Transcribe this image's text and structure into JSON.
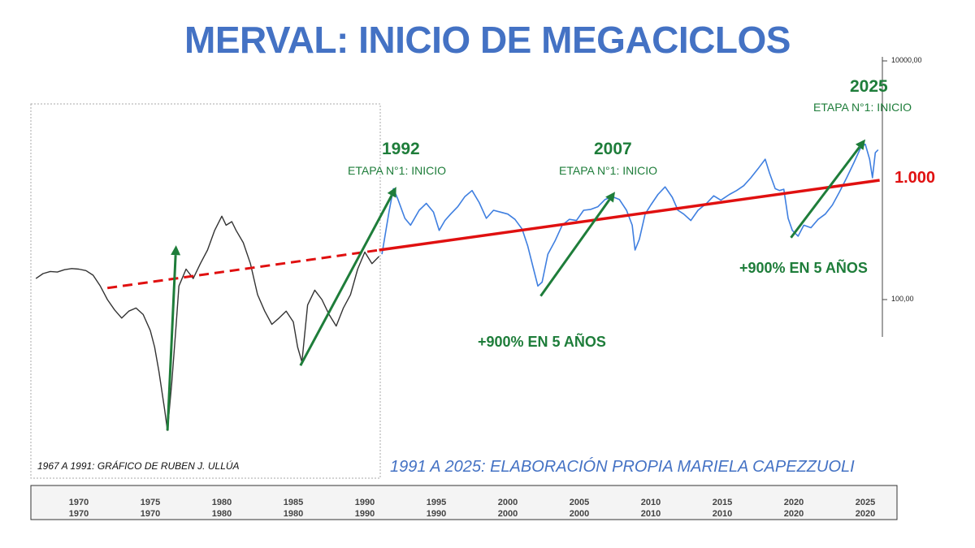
{
  "title": "MERVAL: INICIO DE MEGACICLOS",
  "colors": {
    "title": "#4472c4",
    "historical_series": "#333333",
    "recent_series": "#3f7fe0",
    "trend_line": "#e01010",
    "arrows": "#1e7d3a"
  },
  "annotations": {
    "a1992": {
      "year": "1992",
      "stage": "ETAPA N°1: INICIO"
    },
    "a2007": {
      "year": "2007",
      "stage": "ETAPA N°1: INICIO"
    },
    "a2025": {
      "year": "2025",
      "stage": "ETAPA N°1: INICIO"
    },
    "gain_2002": "+900% EN 5 AÑOS",
    "gain_2020": "+900% EN 5 AÑOS",
    "level": "1.000"
  },
  "credits": {
    "left": "1967 A 1991: GRÁFICO DE RUBEN J. ULLÚA",
    "right": "1991 A 2025: ELABORACIÓN PROPIA MARIELA CAPEZZUOLI"
  },
  "chart_data": {
    "type": "line",
    "title": "MERVAL: INICIO DE MEGACICLOS",
    "y_scale": "log",
    "y_ticks": [
      "10000,00",
      "100,00"
    ],
    "x_axis_top": [
      "1970",
      "1975",
      "1980",
      "1985",
      "1990",
      "1995",
      "2000",
      "2005",
      "2010",
      "2015",
      "2020",
      "2025"
    ],
    "x_axis_bottom": [
      "1970",
      "1970",
      "1980",
      "1980",
      "1990",
      "1990",
      "2000",
      "2000",
      "2010",
      "2010",
      "2020",
      "2020"
    ],
    "series": [
      {
        "style": "historical",
        "points": [
          [
            1967.0,
            150
          ],
          [
            1967.5,
            165
          ],
          [
            1968.0,
            172
          ],
          [
            1968.5,
            170
          ],
          [
            1969.0,
            178
          ],
          [
            1969.5,
            182
          ],
          [
            1970.0,
            180
          ],
          [
            1970.5,
            175
          ],
          [
            1971.0,
            160
          ],
          [
            1971.5,
            130
          ],
          [
            1972.0,
            100
          ],
          [
            1972.5,
            82
          ],
          [
            1973.0,
            70
          ],
          [
            1973.5,
            80
          ],
          [
            1974.0,
            85
          ],
          [
            1974.5,
            75
          ],
          [
            1975.0,
            55
          ],
          [
            1975.3,
            40
          ],
          [
            1975.6,
            25
          ],
          [
            1976.0,
            12
          ],
          [
            1976.2,
            8
          ],
          [
            1976.5,
            20
          ],
          [
            1976.8,
            60
          ],
          [
            1977.0,
            130
          ],
          [
            1977.5,
            180
          ],
          [
            1978.0,
            150
          ],
          [
            1978.5,
            200
          ],
          [
            1979.0,
            260
          ],
          [
            1979.5,
            380
          ],
          [
            1980.0,
            500
          ],
          [
            1980.3,
            420
          ],
          [
            1980.7,
            450
          ],
          [
            1981.0,
            380
          ],
          [
            1981.5,
            300
          ],
          [
            1982.0,
            200
          ],
          [
            1982.5,
            110
          ],
          [
            1983.0,
            80
          ],
          [
            1983.5,
            62
          ],
          [
            1984.0,
            70
          ],
          [
            1984.5,
            80
          ],
          [
            1985.0,
            65
          ],
          [
            1985.3,
            40
          ],
          [
            1985.6,
            30
          ],
          [
            1986.0,
            90
          ],
          [
            1986.5,
            120
          ],
          [
            1987.0,
            100
          ],
          [
            1987.5,
            75
          ],
          [
            1988.0,
            60
          ],
          [
            1988.5,
            85
          ],
          [
            1989.0,
            110
          ],
          [
            1989.5,
            180
          ],
          [
            1990.0,
            250
          ],
          [
            1990.5,
            200
          ],
          [
            1991.0,
            230
          ]
        ]
      },
      {
        "style": "recent",
        "points": [
          [
            1991.2,
            240
          ],
          [
            1991.7,
            550
          ],
          [
            1992.0,
            850
          ],
          [
            1992.3,
            700
          ],
          [
            1992.8,
            480
          ],
          [
            1993.2,
            420
          ],
          [
            1993.8,
            560
          ],
          [
            1994.3,
            640
          ],
          [
            1994.8,
            540
          ],
          [
            1995.2,
            380
          ],
          [
            1995.6,
            460
          ],
          [
            1996.0,
            520
          ],
          [
            1996.5,
            600
          ],
          [
            1997.0,
            730
          ],
          [
            1997.5,
            820
          ],
          [
            1998.0,
            650
          ],
          [
            1998.5,
            480
          ],
          [
            1999.0,
            560
          ],
          [
            1999.5,
            540
          ],
          [
            2000.0,
            520
          ],
          [
            2000.5,
            470
          ],
          [
            2001.0,
            390
          ],
          [
            2001.4,
            280
          ],
          [
            2001.8,
            180
          ],
          [
            2002.1,
            130
          ],
          [
            2002.4,
            140
          ],
          [
            2002.8,
            240
          ],
          [
            2003.3,
            310
          ],
          [
            2003.8,
            420
          ],
          [
            2004.3,
            470
          ],
          [
            2004.8,
            460
          ],
          [
            2005.3,
            560
          ],
          [
            2005.8,
            570
          ],
          [
            2006.3,
            600
          ],
          [
            2006.8,
            690
          ],
          [
            2007.3,
            730
          ],
          [
            2007.8,
            690
          ],
          [
            2008.3,
            560
          ],
          [
            2008.7,
            420
          ],
          [
            2008.9,
            260
          ],
          [
            2009.2,
            320
          ],
          [
            2009.6,
            520
          ],
          [
            2010.0,
            620
          ],
          [
            2010.5,
            760
          ],
          [
            2011.0,
            880
          ],
          [
            2011.5,
            720
          ],
          [
            2011.9,
            560
          ],
          [
            2012.3,
            520
          ],
          [
            2012.8,
            460
          ],
          [
            2013.3,
            560
          ],
          [
            2013.9,
            640
          ],
          [
            2014.4,
            740
          ],
          [
            2014.9,
            680
          ],
          [
            2015.5,
            760
          ],
          [
            2016.0,
            820
          ],
          [
            2016.5,
            900
          ],
          [
            2017.0,
            1050
          ],
          [
            2017.5,
            1250
          ],
          [
            2018.0,
            1500
          ],
          [
            2018.3,
            1150
          ],
          [
            2018.7,
            850
          ],
          [
            2019.0,
            820
          ],
          [
            2019.3,
            840
          ],
          [
            2019.6,
            480
          ],
          [
            2019.9,
            380
          ],
          [
            2020.3,
            340
          ],
          [
            2020.7,
            420
          ],
          [
            2021.2,
            400
          ],
          [
            2021.7,
            470
          ],
          [
            2022.2,
            520
          ],
          [
            2022.7,
            620
          ],
          [
            2023.2,
            800
          ],
          [
            2023.7,
            1050
          ],
          [
            2024.2,
            1400
          ],
          [
            2024.7,
            1900
          ],
          [
            2025.0,
            2000
          ],
          [
            2025.3,
            1500
          ],
          [
            2025.5,
            1050
          ],
          [
            2025.7,
            1700
          ],
          [
            2025.9,
            1800
          ]
        ]
      }
    ],
    "trend_line": {
      "start": [
        1972.0,
        125
      ],
      "end": [
        2026.0,
        1000
      ],
      "dashed_until": 1991.0
    },
    "arrows": [
      {
        "from": [
          1976.2,
          8
        ],
        "to": [
          1976.8,
          285
        ]
      },
      {
        "from": [
          1985.5,
          28
        ],
        "to": [
          1992.2,
          880
        ]
      },
      {
        "from": [
          2002.3,
          107
        ],
        "to": [
          2007.5,
          800
        ]
      },
      {
        "from": [
          2019.8,
          330
        ],
        "to": [
          2025.0,
          2200
        ]
      }
    ]
  }
}
